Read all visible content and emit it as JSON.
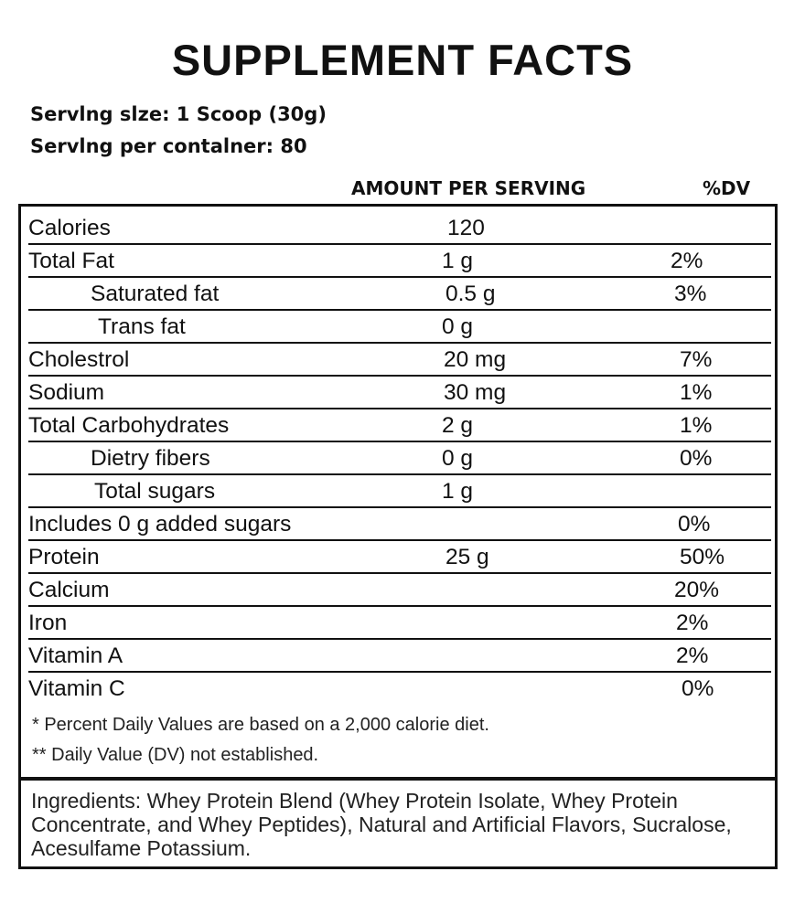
{
  "title": "SUPPLEMENT FACTS",
  "serving_size": "Servlng slze: 1 Scoop (30g)",
  "servings_per_container": "Servlng per contalner: 80",
  "header": {
    "amount": "AMOUNT PER SERVING",
    "dv": "%DV"
  },
  "rows": [
    {
      "label": "Calories",
      "amount": "120",
      "dv": ""
    },
    {
      "label": "Total Fat",
      "amount": "1 g",
      "dv": "2%"
    },
    {
      "label": "Saturated fat",
      "amount": "0.5 g",
      "dv": "3%"
    },
    {
      "label": "Trans fat",
      "amount": "0 g",
      "dv": ""
    },
    {
      "label": "Cholestrol",
      "amount": "20 mg",
      "dv": "7%"
    },
    {
      "label": "Sodium",
      "amount": "30 mg",
      "dv": "1%"
    },
    {
      "label": "Total Carbohydrates",
      "amount": "2 g",
      "dv": "1%"
    },
    {
      "label": "Dietry fibers",
      "amount": "0 g",
      "dv": "0%"
    },
    {
      "label": "Total sugars",
      "amount": "1 g",
      "dv": ""
    },
    {
      "label": "Includes 0 g added sugars",
      "amount": "",
      "dv": "0%"
    },
    {
      "label": "Protein",
      "amount": "25 g",
      "dv": "50%"
    },
    {
      "label": "Calcium",
      "amount": "",
      "dv": "20%"
    },
    {
      "label": "Iron",
      "amount": "",
      "dv": "2%"
    },
    {
      "label": "Vitamin A",
      "amount": "",
      "dv": "2%"
    },
    {
      "label": "Vitamin C",
      "amount": "",
      "dv": "0%"
    }
  ],
  "footnotes": [
    "* Percent Daily Values are based on a 2,000 calorie diet.",
    "** Daily Value (DV) not established."
  ],
  "ingredients": "Ingredients: Whey Protein Blend (Whey Protein Isolate, Whey Protein Concentrate, and Whey Peptides), Natural and Artificial Flavors, Sucralose, Acesulfame Potassium."
}
